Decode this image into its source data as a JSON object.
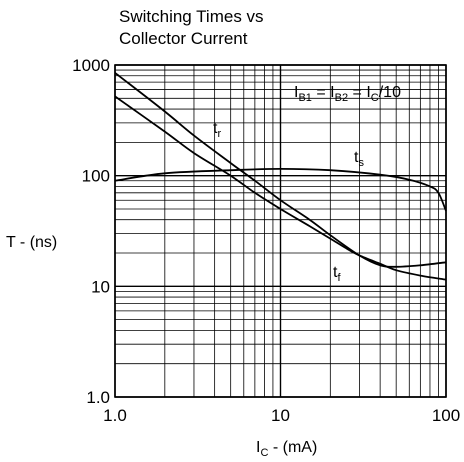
{
  "chart_data": {
    "type": "line",
    "title_lines": [
      "Switching Times vs",
      "Collector Current"
    ],
    "xlabel": {
      "main": "I",
      "sub": "C",
      "rest": " - (mA)"
    },
    "ylabel": "T - (ns)",
    "x_scale": "log",
    "y_scale": "log",
    "xlim": [
      1,
      100
    ],
    "ylim": [
      1,
      1000
    ],
    "x_ticks": [
      {
        "value": 1,
        "label": "1.0"
      },
      {
        "value": 10,
        "label": "10"
      },
      {
        "value": 100,
        "label": "100"
      }
    ],
    "y_ticks": [
      {
        "value": 1,
        "label": "1.0"
      },
      {
        "value": 10,
        "label": "10"
      },
      {
        "value": 100,
        "label": "100"
      },
      {
        "value": 1000,
        "label": "1000"
      }
    ],
    "grid": true,
    "condition": {
      "parts": [
        {
          "t": "I",
          "sub": "B1"
        },
        {
          "t": " = I",
          "sub": "B2"
        },
        {
          "t": " = I",
          "sub": "C"
        },
        {
          "t": "/10",
          "sub": ""
        }
      ]
    },
    "series": [
      {
        "name": {
          "main": "t",
          "sub": "r"
        },
        "x": [
          1,
          2,
          3,
          5,
          7,
          10,
          15,
          20,
          30,
          40,
          50,
          70,
          100
        ],
        "y": [
          850,
          380,
          230,
          130,
          90,
          60,
          40,
          29,
          19,
          15.5,
          15,
          15.5,
          16.5
        ]
      },
      {
        "name": {
          "main": "t",
          "sub": "s"
        },
        "x": [
          1,
          2,
          5,
          10,
          20,
          40,
          60,
          80,
          90,
          100
        ],
        "y": [
          90,
          105,
          112,
          115,
          112,
          102,
          92,
          80,
          70,
          48
        ]
      },
      {
        "name": {
          "main": "t",
          "sub": "f"
        },
        "x": [
          1,
          2,
          3,
          5,
          7,
          10,
          15,
          20,
          25,
          30,
          40,
          50,
          70,
          100
        ],
        "y": [
          520,
          250,
          160,
          100,
          70,
          50,
          35,
          27,
          22,
          19,
          16,
          14,
          12.5,
          11.5
        ]
      }
    ]
  }
}
